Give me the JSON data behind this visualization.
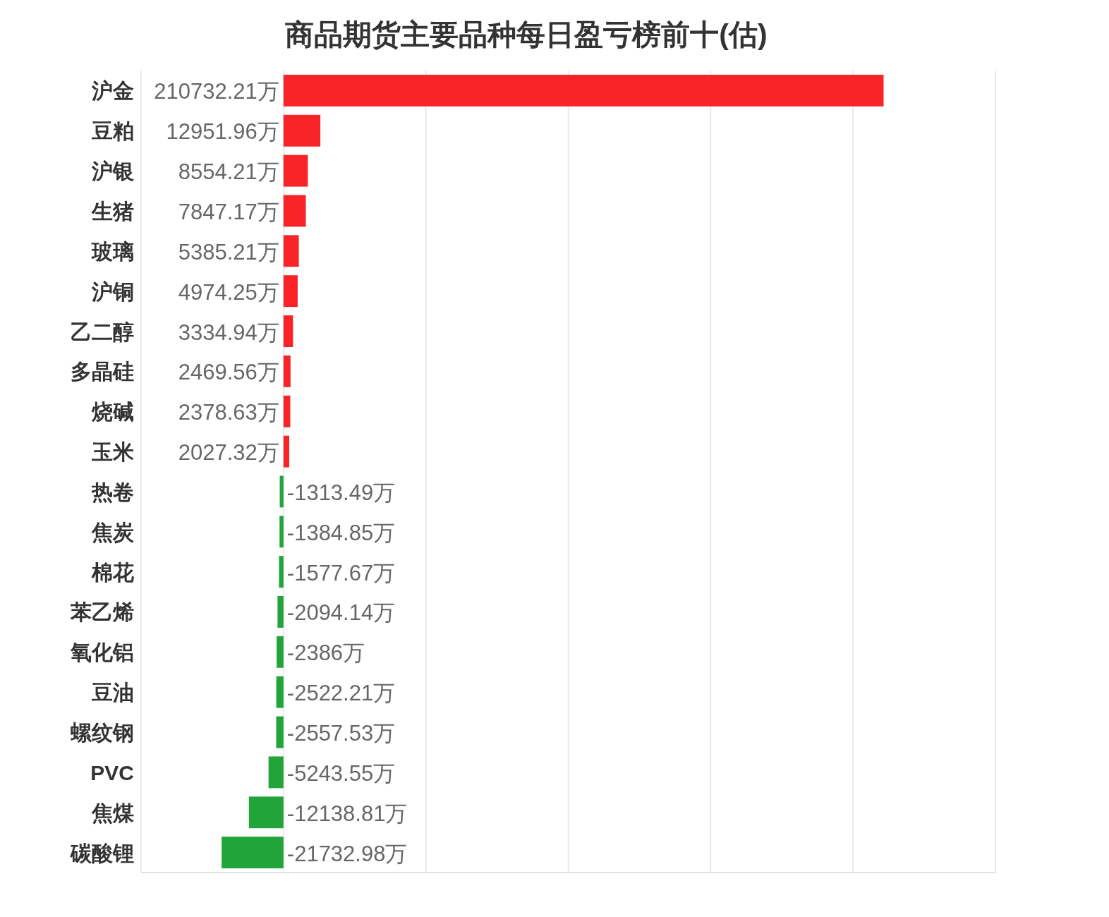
{
  "chart_data": {
    "type": "bar",
    "orientation": "horizontal",
    "title": "商品期货主要品种每日盈亏榜前十(估)",
    "categories": [
      "沪金",
      "豆粕",
      "沪银",
      "生猪",
      "玻璃",
      "沪铜",
      "乙二醇",
      "多晶硅",
      "烧碱",
      "玉米",
      "热卷",
      "焦炭",
      "棉花",
      "苯乙烯",
      "氧化铝",
      "豆油",
      "螺纹钢",
      "PVC",
      "焦煤",
      "碳酸锂"
    ],
    "values": [
      210732.21,
      12951.96,
      8554.21,
      7847.17,
      5385.21,
      4974.25,
      3334.94,
      2469.56,
      2378.63,
      2027.32,
      -1313.49,
      -1384.85,
      -1577.67,
      -2094.14,
      -2386,
      -2522.21,
      -2557.53,
      -5243.55,
      -12138.81,
      -21732.98
    ],
    "value_labels": [
      "210732.21万",
      "12951.96万",
      "8554.21万",
      "7847.17万",
      "5385.21万",
      "4974.25万",
      "3334.94万",
      "2469.56万",
      "2378.63万",
      "2027.32万",
      "-1313.49万",
      "-1384.85万",
      "-1577.67万",
      "-2094.14万",
      "-2386万",
      "-2522.21万",
      "-2557.53万",
      "-5243.55万",
      "-12138.81万",
      "-21732.98万"
    ],
    "colors": [
      "#f82428",
      "#f82428",
      "#f82428",
      "#f82428",
      "#f82428",
      "#f82428",
      "#f82428",
      "#f82428",
      "#f82428",
      "#f82428",
      "#21a43a",
      "#21a43a",
      "#21a43a",
      "#21a43a",
      "#21a43a",
      "#21a43a",
      "#21a43a",
      "#21a43a",
      "#21a43a",
      "#21a43a"
    ],
    "xlim": [
      -50000,
      250000
    ],
    "xticks": [
      {
        "value": -50000,
        "label": null
      },
      {
        "value": 0,
        "label": null
      },
      {
        "value": 50000,
        "label": null
      },
      {
        "value": 100000,
        "label": null
      },
      {
        "value": 150000,
        "label": null
      },
      {
        "value": 200000,
        "label": null
      },
      {
        "value": 250000,
        "label": null
      }
    ],
    "grid": "x",
    "tick_labels": "y"
  }
}
